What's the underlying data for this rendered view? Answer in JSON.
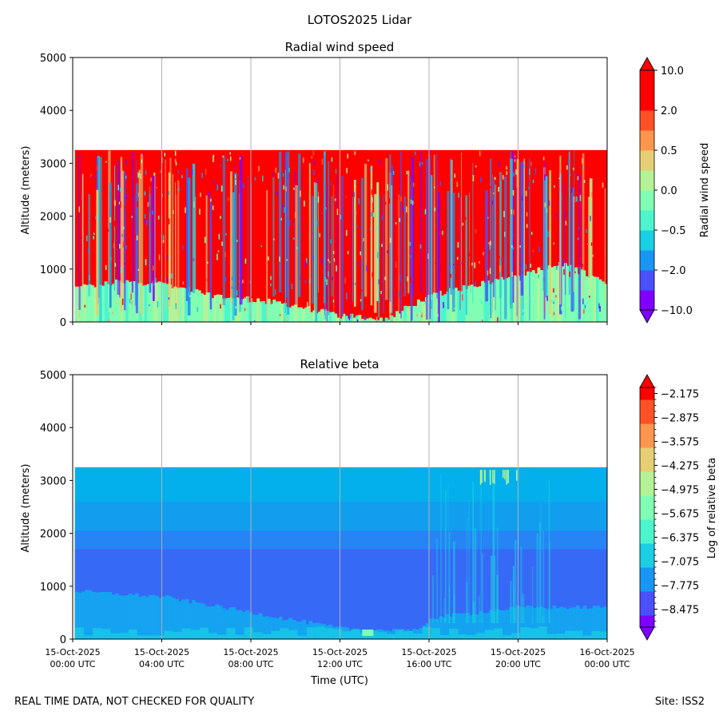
{
  "figure": {
    "title": "LOTOS2025 Lidar",
    "footer_left": "REAL TIME DATA, NOT CHECKED FOR QUALITY",
    "footer_right": "Site: ISS2"
  },
  "colors": {
    "rainbow": [
      "#8000ff",
      "#4a50fb",
      "#1996f3",
      "#1acee3",
      "#4df5cc",
      "#80ffb4",
      "#b3f396",
      "#e6ce74",
      "#ff964e",
      "#ff5026",
      "#ff0000"
    ],
    "grid": "#b0b0b0",
    "wind_background": "#ff0000",
    "beta_background": "#03b0ec"
  },
  "chart_data": [
    {
      "type": "heatmap",
      "title": "Radial wind speed",
      "xlabel": "",
      "ylabel": "Altitude (meters)",
      "ylim": [
        0,
        5000
      ],
      "yticks": [
        0,
        1000,
        2000,
        3000,
        4000,
        5000
      ],
      "xlim": [
        "15-Oct-2025 00:00 UTC",
        "16-Oct-2025 00:00 UTC"
      ],
      "x_tick_hours": [
        0,
        4,
        8,
        12,
        16,
        20,
        24
      ],
      "x_tick_labels": [
        "15-Oct-2025\n00:00 UTC",
        "15-Oct-2025\n04:00 UTC",
        "15-Oct-2025\n08:00 UTC",
        "15-Oct-2025\n12:00 UTC",
        "15-Oct-2025\n16:00 UTC",
        "15-Oct-2025\n20:00 UTC",
        "16-Oct-2025\n00:00 UTC"
      ],
      "grid": "vertical",
      "data_top_altitude_m": 3250,
      "boundary_layer_top_m": [
        {
          "hour": 0.2,
          "alt": 650
        },
        {
          "hour": 2,
          "alt": 750
        },
        {
          "hour": 4,
          "alt": 740
        },
        {
          "hour": 6,
          "alt": 520
        },
        {
          "hour": 8,
          "alt": 430
        },
        {
          "hour": 10,
          "alt": 300
        },
        {
          "hour": 12,
          "alt": 120
        },
        {
          "hour": 14,
          "alt": 60
        },
        {
          "hour": 16,
          "alt": 500
        },
        {
          "hour": 18,
          "alt": 700
        },
        {
          "hour": 20,
          "alt": 900
        },
        {
          "hour": 22,
          "alt": 1100
        },
        {
          "hour": 24,
          "alt": 700
        }
      ],
      "colorbar": {
        "label": "Radial wind speed",
        "tick_labels": [
          "10.0",
          "2.0",
          "0.5",
          "0.0",
          "−0.5",
          "−2.0",
          "−10.0"
        ],
        "levels": 12,
        "extend": "both"
      }
    },
    {
      "type": "heatmap",
      "title": "Relative beta",
      "xlabel": "Time (UTC)",
      "ylabel": "Altitude (meters)",
      "ylim": [
        0,
        5000
      ],
      "yticks": [
        0,
        1000,
        2000,
        3000,
        4000,
        5000
      ],
      "xlim": [
        "15-Oct-2025 00:00 UTC",
        "16-Oct-2025 00:00 UTC"
      ],
      "x_tick_hours": [
        0,
        4,
        8,
        12,
        16,
        20,
        24
      ],
      "x_tick_labels": [
        "15-Oct-2025\n00:00 UTC",
        "15-Oct-2025\n04:00 UTC",
        "15-Oct-2025\n08:00 UTC",
        "15-Oct-2025\n12:00 UTC",
        "15-Oct-2025\n16:00 UTC",
        "15-Oct-2025\n20:00 UTC",
        "16-Oct-2025\n00:00 UTC"
      ],
      "grid": "vertical",
      "data_top_altitude_m": 3250,
      "boundary_layer_top_m": [
        {
          "hour": 0.2,
          "alt": 900
        },
        {
          "hour": 4,
          "alt": 800
        },
        {
          "hour": 8,
          "alt": 500
        },
        {
          "hour": 12,
          "alt": 200
        },
        {
          "hour": 15.5,
          "alt": 150
        },
        {
          "hour": 16,
          "alt": 400
        },
        {
          "hour": 20,
          "alt": 600
        },
        {
          "hour": 24,
          "alt": 600
        }
      ],
      "colorbar": {
        "label": "Log of relative beta",
        "tick_labels": [
          "−2.175",
          "−2.875",
          "−3.575",
          "−4.275",
          "−4.975",
          "−5.675",
          "−6.375",
          "−7.075",
          "−7.775",
          "−8.475"
        ],
        "tick_values": [
          -2.175,
          -2.875,
          -3.575,
          -4.275,
          -4.975,
          -5.675,
          -6.375,
          -7.075,
          -7.775,
          -8.475
        ],
        "vmin": -9.0,
        "vmax": -2.0,
        "extend": "both"
      }
    }
  ]
}
